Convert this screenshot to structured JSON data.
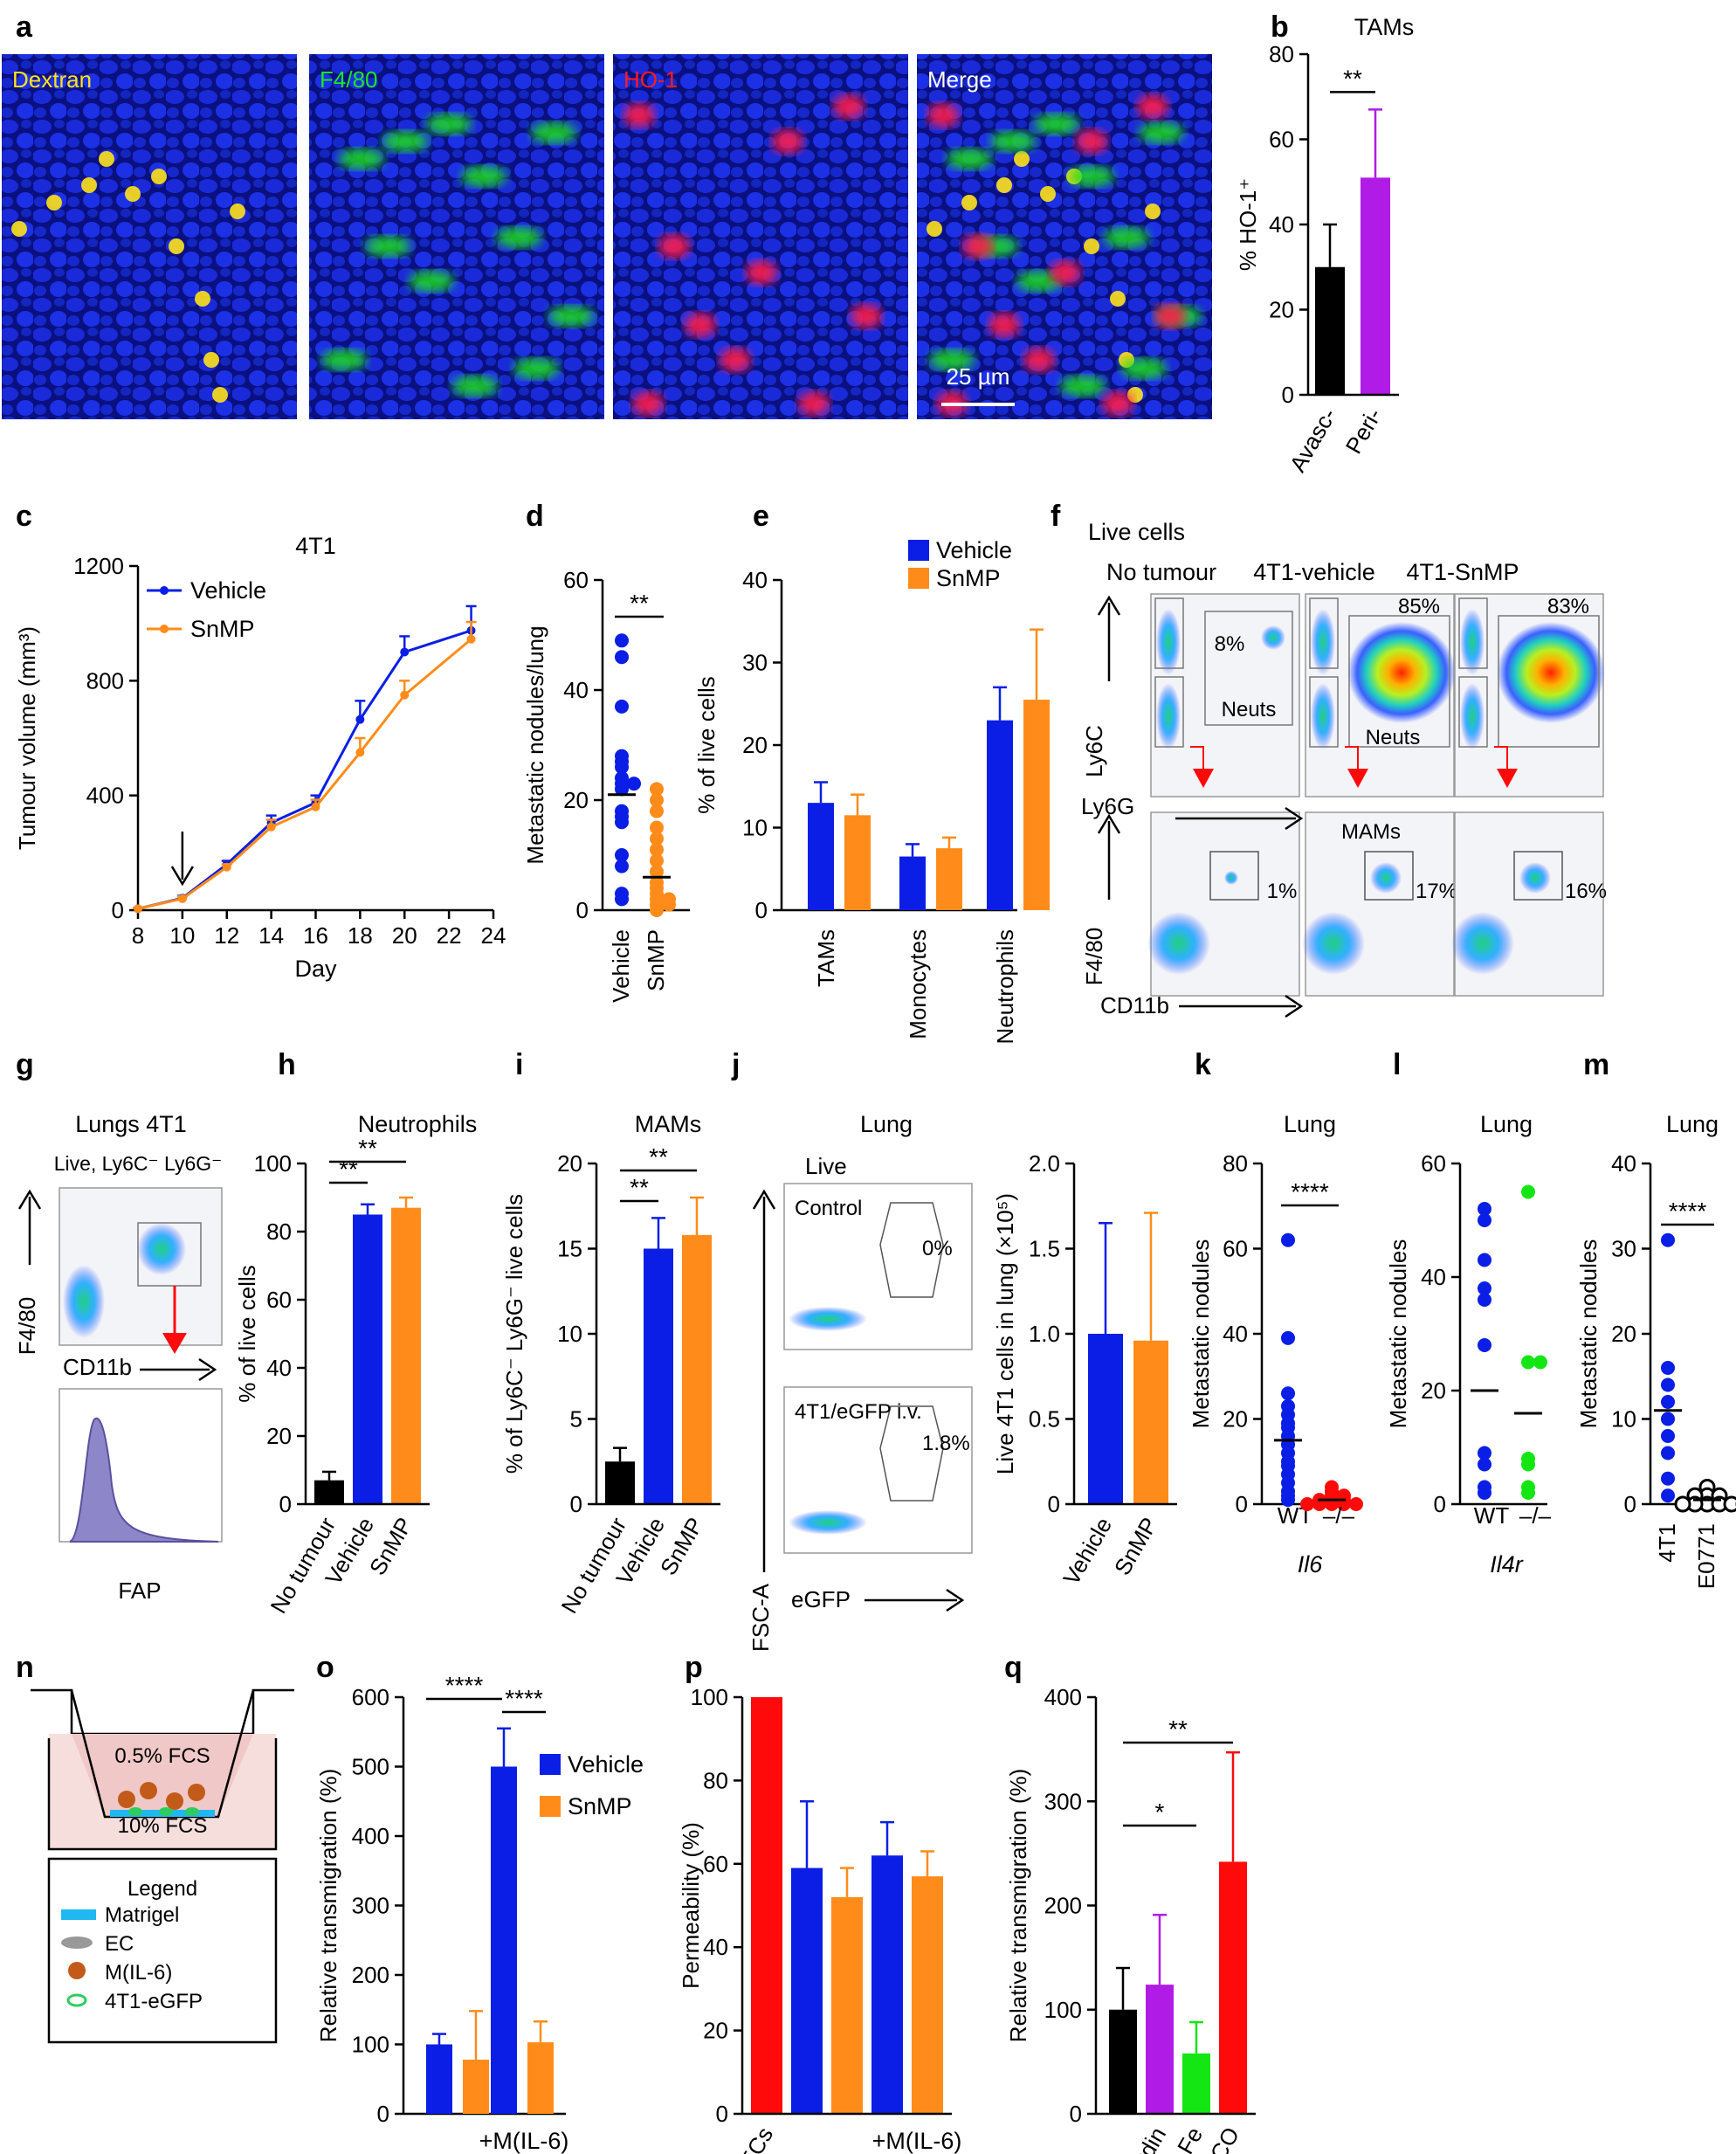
{
  "colors": {
    "blue": "#0a1ee6",
    "orange": "#ff8c1a",
    "purple": "#b01be6",
    "red": "#ff0a0a",
    "green": "#14e614",
    "black": "#000000",
    "micro_bg": "#0c1390",
    "yellow": "#ffe21a",
    "flow_bg": "#f3f4f8"
  },
  "panel_letters": [
    "a",
    "b",
    "c",
    "d",
    "e",
    "f",
    "g",
    "h",
    "i",
    "j",
    "k",
    "l",
    "m",
    "n",
    "o",
    "p",
    "q"
  ],
  "panel_a": {
    "labels": [
      "Dextran",
      "F4/80",
      "HO-1",
      "Merge"
    ],
    "scale_bar": "25 µm",
    "label_colors": [
      "#ffe21a",
      "#1ce61c",
      "#ff1a1a",
      "#ffffff"
    ]
  },
  "panel_f": {
    "header": "Live cells",
    "columns": [
      "No tumour",
      "4T1-vehicle",
      "4T1-SnMP"
    ],
    "top_gate_pcts": [
      "8%",
      "85%",
      "83%"
    ],
    "top_gate_label": "Neuts",
    "top_y_axis": "Ly6C",
    "top_x_axis": "Ly6G",
    "bottom_gate_pcts": [
      "1%",
      "17%",
      "16%"
    ],
    "bottom_gate_label": "MAMs",
    "bottom_y_axis": "F4/80",
    "bottom_x_axis": "CD11b"
  },
  "panel_g": {
    "title": "Lungs 4T1",
    "gate": "Live, Ly6C⁻ Ly6G⁻",
    "y_axis": "F4/80",
    "x_axis": "CD11b",
    "hist_x": "FAP"
  },
  "panel_j": {
    "title": "Lung",
    "header": "Live",
    "flow": [
      {
        "label": "Control",
        "pct": "0%"
      },
      {
        "label": "4T1/eGFP i.v.",
        "pct": "1.8%"
      }
    ],
    "y_axis": "FSC-A",
    "x_axis": "eGFP"
  },
  "panel_n": {
    "top_medium": "0.5% FCS",
    "bottom_medium": "10% FCS",
    "legend_title": "Legend",
    "legend": [
      "Matrigel",
      "EC",
      "M(IL-6)",
      "4T1-eGFP"
    ]
  },
  "chart_data": [
    {
      "panel": "b",
      "type": "bar",
      "title": "TAMs",
      "categories": [
        "Avasc-",
        "Peri-"
      ],
      "values": [
        30,
        51
      ],
      "errors": [
        10,
        16
      ],
      "colors": [
        "#000000",
        "#b01be6"
      ],
      "ylabel": "% HO-1⁺",
      "ylim": [
        0,
        80
      ],
      "yticks": [
        0,
        20,
        40,
        60,
        80
      ],
      "sig": [
        {
          "from": 0,
          "to": 1,
          "label": "**"
        }
      ]
    },
    {
      "panel": "c",
      "type": "line",
      "title": "4T1",
      "xlabel": "Day",
      "ylabel": "Tumour volume (mm³)",
      "xlim": [
        8,
        24
      ],
      "ylim": [
        0,
        1200
      ],
      "xticks": [
        8,
        10,
        12,
        14,
        16,
        18,
        20,
        22,
        24
      ],
      "yticks": [
        0,
        400,
        800,
        1200
      ],
      "arrow_x": 10,
      "series": [
        {
          "name": "Vehicle",
          "color": "#0a1ee6",
          "x": [
            8,
            10,
            12,
            14,
            16,
            18,
            20,
            23
          ],
          "y": [
            5,
            42,
            160,
            305,
            375,
            665,
            900,
            975
          ],
          "err": [
            3,
            8,
            12,
            25,
            25,
            65,
            55,
            85
          ]
        },
        {
          "name": "SnMP",
          "color": "#ff8c1a",
          "x": [
            8,
            10,
            12,
            14,
            16,
            18,
            20,
            23
          ],
          "y": [
            5,
            40,
            150,
            290,
            360,
            550,
            750,
            945
          ],
          "err": [
            3,
            8,
            10,
            25,
            25,
            50,
            50,
            60
          ]
        }
      ]
    },
    {
      "panel": "d",
      "type": "scatter",
      "ylabel": "Metastatic nodules/lung",
      "ylim": [
        0,
        60
      ],
      "yticks": [
        0,
        20,
        40,
        60
      ],
      "categories": [
        "Vehicle",
        "SnMP"
      ],
      "colors": [
        "#0a1ee6",
        "#ff8c1a"
      ],
      "means": [
        21,
        6
      ],
      "points": [
        [
          49,
          46,
          37,
          28,
          27,
          26,
          24,
          23,
          23,
          22,
          18,
          17,
          16,
          10,
          8,
          3,
          2
        ],
        [
          22,
          20,
          18,
          15,
          13,
          11,
          9,
          7,
          5,
          4,
          3,
          2,
          2,
          1,
          1,
          0
        ]
      ],
      "sig": [
        {
          "from": 0,
          "to": 1,
          "label": "**"
        }
      ]
    },
    {
      "panel": "e",
      "type": "bar",
      "ylabel": "% of live cells",
      "ylim": [
        0,
        40
      ],
      "yticks": [
        0,
        10,
        20,
        30,
        40
      ],
      "categories": [
        "TAMs",
        "Monocytes",
        "Neutrophils"
      ],
      "series": [
        {
          "name": "Vehicle",
          "color": "#0a1ee6",
          "values": [
            13,
            6.5,
            23
          ],
          "errors": [
            2.5,
            1.5,
            4
          ]
        },
        {
          "name": "SnMP",
          "color": "#ff8c1a",
          "values": [
            11.5,
            7.5,
            25.5
          ],
          "errors": [
            2.5,
            1.3,
            8.5
          ]
        }
      ]
    },
    {
      "panel": "h",
      "type": "bar",
      "title": "Neutrophils",
      "ylabel": "% of live cells",
      "ylim": [
        0,
        100
      ],
      "yticks": [
        0,
        20,
        40,
        60,
        80,
        100
      ],
      "categories": [
        "No tumour",
        "Vehicle",
        "SnMP"
      ],
      "values": [
        7,
        85,
        87
      ],
      "errors": [
        2.5,
        3,
        3
      ],
      "colors": [
        "#000000",
        "#0a1ee6",
        "#ff8c1a"
      ],
      "sig": [
        {
          "from": 0,
          "to": 1,
          "label": "**"
        },
        {
          "from": 0,
          "to": 2,
          "label": "**"
        }
      ]
    },
    {
      "panel": "i",
      "type": "bar",
      "title": "MAMs",
      "ylabel": "% of Ly6C⁻ Ly6G⁻ live cells",
      "ylim": [
        0,
        20
      ],
      "yticks": [
        0,
        5,
        10,
        15,
        20
      ],
      "categories": [
        "No tumour",
        "Vehicle",
        "SnMP"
      ],
      "values": [
        2.5,
        15,
        15.8
      ],
      "errors": [
        0.8,
        1.8,
        2.2
      ],
      "colors": [
        "#000000",
        "#0a1ee6",
        "#ff8c1a"
      ],
      "sig": [
        {
          "from": 0,
          "to": 1,
          "label": "**"
        },
        {
          "from": 0,
          "to": 2,
          "label": "**"
        }
      ]
    },
    {
      "panel": "j2",
      "type": "bar",
      "ylabel": "Live 4T1 cells in lung (×10⁵)",
      "ylim": [
        0,
        2.0
      ],
      "yticks": [
        "0",
        "0.5",
        "1.0",
        "1.5",
        "2.0"
      ],
      "categories": [
        "Vehicle",
        "SnMP"
      ],
      "values": [
        1.0,
        0.96
      ],
      "errors": [
        0.65,
        0.75
      ],
      "colors": [
        "#0a1ee6",
        "#ff8c1a"
      ]
    },
    {
      "panel": "k",
      "type": "scatter",
      "title": "Lung",
      "ylabel": "Metastatic nodules",
      "ylim": [
        0,
        80
      ],
      "yticks": [
        0,
        20,
        40,
        60,
        80
      ],
      "categories": [
        "WT",
        "–/–"
      ],
      "group_label": "Il6",
      "colors": [
        "#0a1ee6",
        "#ff0a0a"
      ],
      "means": [
        15,
        1
      ],
      "points": [
        [
          62,
          39,
          26,
          23,
          21,
          19,
          18,
          16,
          14,
          12,
          10,
          9,
          7,
          5,
          3,
          2,
          1
        ],
        [
          4,
          3,
          2,
          2,
          1,
          1,
          1,
          0,
          0,
          0,
          0,
          0
        ]
      ],
      "sig": [
        {
          "from": 0,
          "to": 1,
          "label": "****"
        }
      ]
    },
    {
      "panel": "l",
      "type": "scatter",
      "title": "Lung",
      "ylabel": "Metastatic nodules",
      "ylim": [
        0,
        60
      ],
      "yticks": [
        0,
        20,
        40,
        60
      ],
      "categories": [
        "WT",
        "–/–"
      ],
      "group_label": "Il4r",
      "colors": [
        "#0a1ee6",
        "#14e614"
      ],
      "means": [
        20,
        16
      ],
      "points": [
        [
          52,
          50,
          43,
          38,
          36,
          28,
          9,
          7,
          3,
          2
        ],
        [
          55,
          25,
          25,
          8,
          7,
          3,
          2
        ]
      ]
    },
    {
      "panel": "m",
      "type": "scatter",
      "title": "Lung",
      "ylabel": "Metastatic nodules",
      "ylim": [
        0,
        40
      ],
      "yticks": [
        0,
        10,
        20,
        30,
        40
      ],
      "categories": [
        "4T1",
        "E0771"
      ],
      "colors": [
        "#0a1ee6",
        "#000000"
      ],
      "means": [
        11,
        0.5
      ],
      "points": [
        [
          31,
          16,
          14,
          12,
          10,
          8,
          6,
          3,
          1
        ],
        [
          2,
          1,
          1,
          1,
          0,
          0,
          0,
          0,
          0,
          0
        ]
      ],
      "sig": [
        {
          "from": 0,
          "to": 1,
          "label": "****"
        }
      ]
    },
    {
      "panel": "o",
      "type": "bar",
      "ylabel": "Relative transmigration (%)",
      "ylim": [
        0,
        600
      ],
      "yticks": [
        0,
        100,
        200,
        300,
        400,
        500,
        600
      ],
      "group_label": "+M(IL-6)",
      "series": [
        {
          "name": "Vehicle",
          "color": "#0a1ee6",
          "values": [
            100,
            500
          ],
          "errors": [
            15,
            55
          ]
        },
        {
          "name": "SnMP",
          "color": "#ff8c1a",
          "values": [
            78,
            103
          ],
          "errors": [
            70,
            30
          ]
        }
      ],
      "sig": [
        {
          "label": "****",
          "pos": "left"
        },
        {
          "label": "****",
          "pos": "right"
        }
      ]
    },
    {
      "panel": "p",
      "type": "bar",
      "ylabel": "Permeability (%)",
      "ylim": [
        0,
        100
      ],
      "yticks": [
        0,
        20,
        40,
        60,
        80,
        100
      ],
      "categories": [
        "No ECs",
        "",
        "",
        "",
        ""
      ],
      "group_label": "+M(IL-6)",
      "values": [
        100,
        59,
        52,
        62,
        57
      ],
      "errors": [
        0,
        16,
        7,
        8,
        6
      ],
      "colors": [
        "#ff0a0a",
        "#0a1ee6",
        "#ff8c1a",
        "#0a1ee6",
        "#ff8c1a"
      ]
    },
    {
      "panel": "q",
      "type": "bar",
      "ylabel": "Relative transmigration (%)",
      "ylim": [
        0,
        400
      ],
      "yticks": [
        0,
        100,
        200,
        300,
        400
      ],
      "categories": [
        "",
        "Biliverdin",
        "Fe",
        "CO"
      ],
      "values": [
        100,
        124,
        58,
        242
      ],
      "errors": [
        40,
        67,
        30,
        105
      ],
      "colors": [
        "#000000",
        "#b01be6",
        "#14e614",
        "#ff0a0a"
      ],
      "sig": [
        {
          "from": 0,
          "to": 2,
          "label": "*"
        },
        {
          "from": 0,
          "to": 3,
          "label": "**"
        }
      ]
    }
  ]
}
